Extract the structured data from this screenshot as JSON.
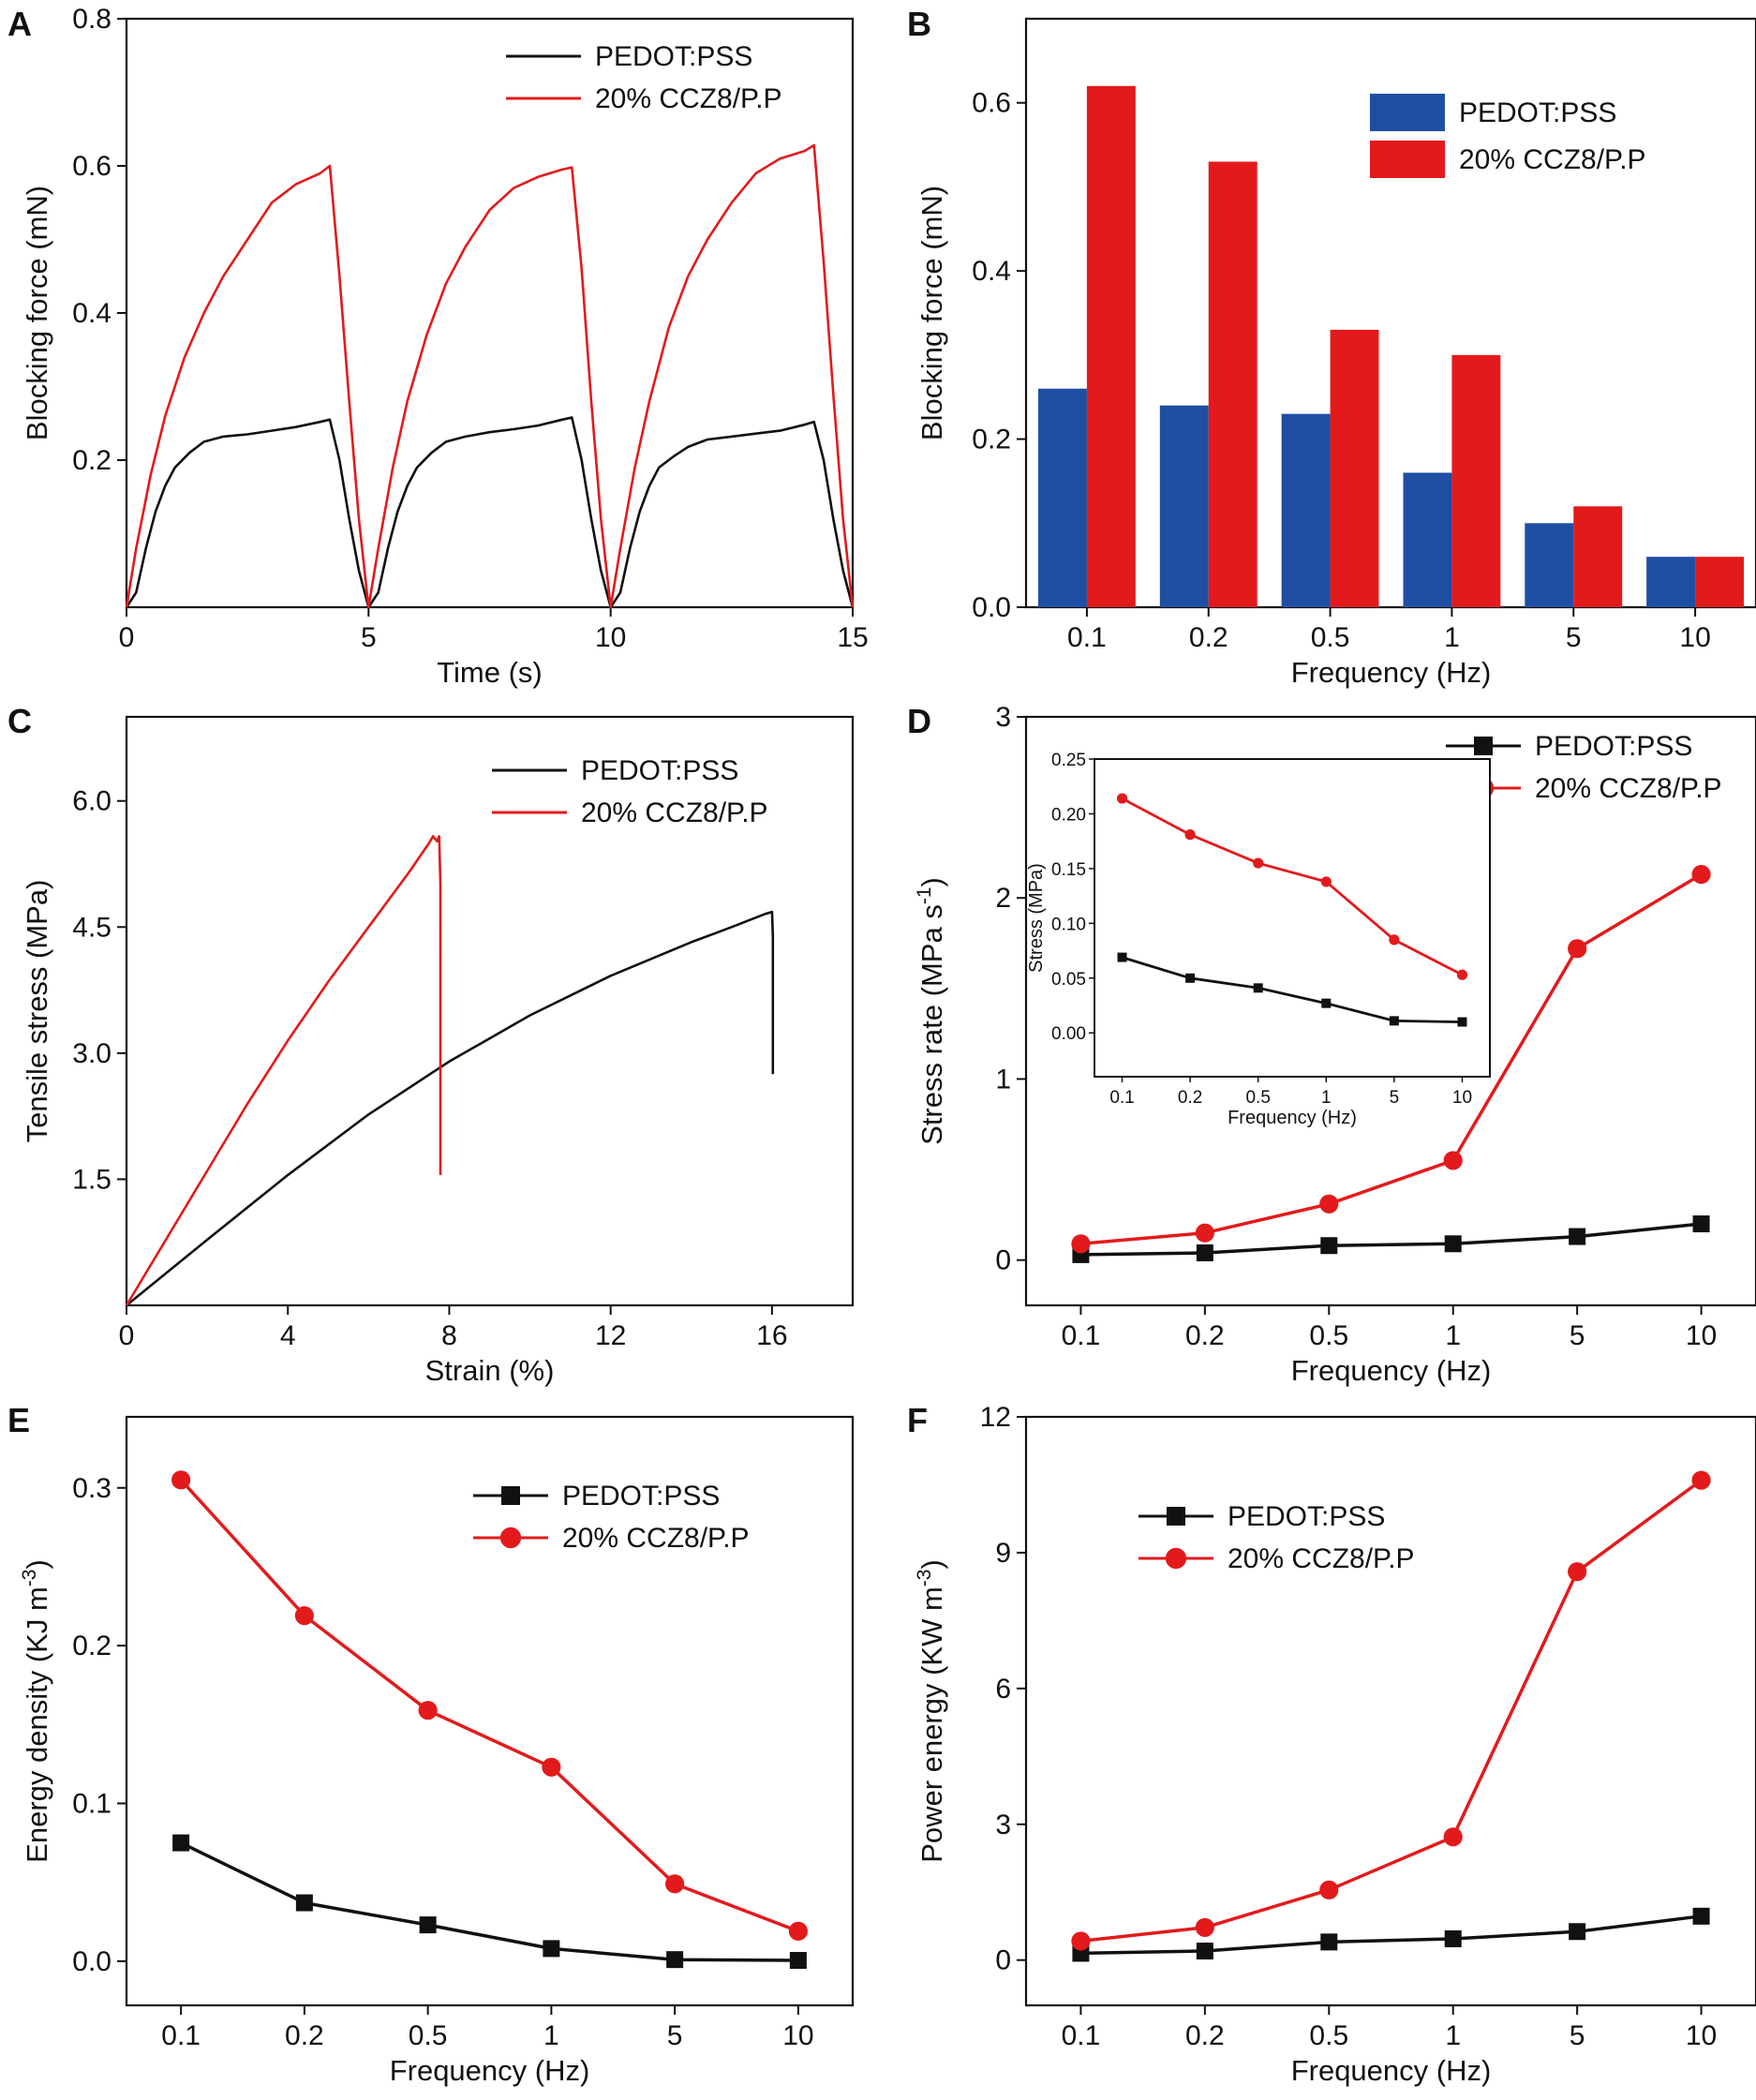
{
  "colors": {
    "black": "#111111",
    "red": "#e31a1c",
    "blue": "#1f4fa3",
    "bar_red": "#e31a1c"
  },
  "chart_data": [
    {
      "panel": "A",
      "type": "line",
      "xlabel": "Time (s)",
      "ylabel": "Blocking force (mN)",
      "xlim": [
        0,
        15
      ],
      "ylim": [
        0,
        0.8
      ],
      "xticks": [
        0,
        5,
        10,
        15
      ],
      "yticks": [
        0.2,
        0.4,
        0.6,
        0.8
      ],
      "xtick_labels": [
        "0",
        "5",
        "10",
        "15"
      ],
      "ytick_labels": [
        "0.2",
        "0.4",
        "0.6",
        "0.8"
      ],
      "legend": [
        "PEDOT:PSS",
        "20% CCZ8/P.P"
      ],
      "series": [
        {
          "name": "PEDOT:PSS",
          "color": "#111111",
          "x": [
            0,
            0.2,
            0.4,
            0.6,
            0.8,
            1.0,
            1.3,
            1.6,
            2.0,
            2.5,
            3.0,
            3.5,
            4.0,
            4.2,
            4.4,
            4.6,
            4.8,
            5.0,
            5.2,
            5.4,
            5.6,
            5.8,
            6.0,
            6.3,
            6.6,
            7.0,
            7.5,
            8.0,
            8.5,
            9.0,
            9.2,
            9.4,
            9.6,
            9.8,
            10.0,
            10.2,
            10.4,
            10.6,
            10.8,
            11.0,
            11.3,
            11.6,
            12.0,
            12.5,
            13.0,
            13.5,
            14.0,
            14.2,
            14.4,
            14.6,
            14.8,
            15.0
          ],
          "y": [
            0,
            0.02,
            0.08,
            0.13,
            0.165,
            0.19,
            0.21,
            0.225,
            0.232,
            0.235,
            0.24,
            0.245,
            0.252,
            0.255,
            0.2,
            0.12,
            0.05,
            0,
            0.02,
            0.08,
            0.13,
            0.165,
            0.19,
            0.21,
            0.225,
            0.232,
            0.238,
            0.242,
            0.247,
            0.255,
            0.258,
            0.2,
            0.12,
            0.05,
            0,
            0.02,
            0.08,
            0.13,
            0.165,
            0.19,
            0.205,
            0.218,
            0.228,
            0.232,
            0.236,
            0.24,
            0.248,
            0.252,
            0.2,
            0.12,
            0.05,
            0
          ]
        },
        {
          "name": "20% CCZ8/P.P",
          "color": "#e31a1c",
          "x": [
            0,
            0.2,
            0.5,
            0.8,
            1.2,
            1.6,
            2.0,
            2.5,
            3.0,
            3.5,
            4.0,
            4.2,
            4.4,
            4.6,
            4.8,
            5.0,
            5.2,
            5.5,
            5.8,
            6.2,
            6.6,
            7.0,
            7.5,
            8.0,
            8.5,
            9.0,
            9.2,
            9.4,
            9.6,
            9.8,
            10.0,
            10.2,
            10.5,
            10.8,
            11.2,
            11.6,
            12.0,
            12.5,
            13.0,
            13.5,
            14.0,
            14.2,
            14.4,
            14.6,
            14.8,
            15.0
          ],
          "y": [
            0,
            0.08,
            0.18,
            0.26,
            0.34,
            0.4,
            0.45,
            0.5,
            0.55,
            0.575,
            0.59,
            0.6,
            0.45,
            0.28,
            0.12,
            0,
            0.08,
            0.19,
            0.28,
            0.37,
            0.44,
            0.49,
            0.54,
            0.57,
            0.585,
            0.595,
            0.598,
            0.46,
            0.28,
            0.12,
            0,
            0.08,
            0.19,
            0.28,
            0.38,
            0.45,
            0.5,
            0.55,
            0.59,
            0.61,
            0.62,
            0.628,
            0.47,
            0.29,
            0.12,
            0
          ]
        }
      ]
    },
    {
      "panel": "B",
      "type": "bar",
      "xlabel": "Frequency (Hz)",
      "ylabel": "Blocking force (mN)",
      "ylim": [
        0,
        0.7
      ],
      "yticks": [
        0.0,
        0.2,
        0.4,
        0.6
      ],
      "ytick_labels": [
        "0.0",
        "0.2",
        "0.4",
        "0.6"
      ],
      "categories": [
        "0.1",
        "0.2",
        "0.5",
        "1",
        "5",
        "10"
      ],
      "legend": [
        "PEDOT:PSS",
        "20% CCZ8/P.P"
      ],
      "series": [
        {
          "name": "PEDOT:PSS",
          "color": "#1f4fa3",
          "values": [
            0.26,
            0.24,
            0.23,
            0.16,
            0.1,
            0.06
          ]
        },
        {
          "name": "20% CCZ8/P.P",
          "color": "#e31a1c",
          "values": [
            0.62,
            0.53,
            0.33,
            0.3,
            0.12,
            0.06
          ]
        }
      ]
    },
    {
      "panel": "C",
      "type": "line",
      "xlabel": "Strain (%)",
      "ylabel": "Tensile stress (MPa)",
      "xlim": [
        0,
        18
      ],
      "ylim": [
        0,
        7
      ],
      "xticks": [
        0,
        4,
        8,
        12,
        16
      ],
      "xtick_labels": [
        "0",
        "4",
        "8",
        "12",
        "16"
      ],
      "yticks": [
        1.5,
        3.0,
        4.5,
        6.0
      ],
      "ytick_labels": [
        "1.5",
        "3.0",
        "4.5",
        "6.0"
      ],
      "legend": [
        "PEDOT:PSS",
        "20% CCZ8/P.P"
      ],
      "series": [
        {
          "name": "PEDOT:PSS",
          "color": "#111111",
          "x": [
            0,
            2,
            4,
            6,
            8,
            10,
            12,
            14,
            15,
            15.8,
            16.0,
            16.02,
            16.02
          ],
          "y": [
            0,
            0.78,
            1.55,
            2.27,
            2.9,
            3.45,
            3.92,
            4.32,
            4.5,
            4.65,
            4.68,
            4.4,
            2.75
          ]
        },
        {
          "name": "20% CCZ8/P.P",
          "color": "#e31a1c",
          "x": [
            0,
            1,
            2,
            3,
            4,
            5,
            6,
            7,
            7.5,
            7.6,
            7.7,
            7.75,
            7.78,
            7.78
          ],
          "y": [
            0,
            0.8,
            1.6,
            2.4,
            3.15,
            3.85,
            4.5,
            5.15,
            5.5,
            5.58,
            5.52,
            5.58,
            5.0,
            1.55
          ]
        }
      ]
    },
    {
      "panel": "D",
      "type": "line",
      "xlabel": "Frequency (Hz)",
      "ylabel": "Stress rate (MPa s",
      "ylabel_sup": "-1",
      "ylabel_end": ")",
      "ylim": [
        -0.25,
        3
      ],
      "yticks": [
        0,
        1,
        2,
        3
      ],
      "ytick_labels": [
        "0",
        "1",
        "2",
        "3"
      ],
      "categories": [
        "0.1",
        "0.2",
        "0.5",
        "1",
        "5",
        "10"
      ],
      "legend": [
        "PEDOT:PSS",
        "20% CCZ8/P.P"
      ],
      "series": [
        {
          "name": "PEDOT:PSS",
          "color": "#111111",
          "marker": "square",
          "values": [
            0.03,
            0.04,
            0.08,
            0.09,
            0.13,
            0.2
          ]
        },
        {
          "name": "20% CCZ8/P.P",
          "color": "#e31a1c",
          "marker": "circle",
          "values": [
            0.09,
            0.15,
            0.31,
            0.55,
            1.72,
            2.13
          ]
        }
      ],
      "inset": {
        "xlabel": "Frequency (Hz)",
        "ylabel": "Stress (MPa)",
        "ylim": [
          -0.04,
          0.25
        ],
        "yticks": [
          0.0,
          0.05,
          0.1,
          0.15,
          0.2,
          0.25
        ],
        "ytick_labels": [
          "0.00",
          "0.05",
          "0.10",
          "0.15",
          "0.20",
          "0.25"
        ],
        "categories": [
          "0.1",
          "0.2",
          "0.5",
          "1",
          "5",
          "10"
        ],
        "series": [
          {
            "name": "PEDOT:PSS",
            "color": "#111111",
            "marker": "square",
            "values": [
              0.069,
              0.05,
              0.041,
              0.027,
              0.011,
              0.01
            ]
          },
          {
            "name": "20% CCZ8/P.P",
            "color": "#e31a1c",
            "marker": "circle",
            "values": [
              0.214,
              0.181,
              0.155,
              0.138,
              0.085,
              0.053
            ]
          }
        ]
      }
    },
    {
      "panel": "E",
      "type": "line",
      "xlabel": "Frequency (Hz)",
      "ylabel": "Energy density (KJ m",
      "ylabel_sup": "-3",
      "ylabel_end": ")",
      "ylim": [
        -0.028,
        0.345
      ],
      "yticks": [
        0.0,
        0.1,
        0.2,
        0.3
      ],
      "ytick_labels": [
        "0.0",
        "0.1",
        "0.2",
        "0.3"
      ],
      "categories": [
        "0.1",
        "0.2",
        "0.5",
        "1",
        "5",
        "10"
      ],
      "legend": [
        "PEDOT:PSS",
        "20% CCZ8/P.P"
      ],
      "series": [
        {
          "name": "PEDOT:PSS",
          "color": "#111111",
          "marker": "square",
          "values": [
            0.075,
            0.037,
            0.023,
            0.008,
            0.001,
            0.0005
          ]
        },
        {
          "name": "20% CCZ8/P.P",
          "color": "#e31a1c",
          "marker": "circle",
          "values": [
            0.305,
            0.219,
            0.159,
            0.123,
            0.049,
            0.019
          ]
        }
      ]
    },
    {
      "panel": "F",
      "type": "line",
      "xlabel": "Frequency (Hz)",
      "ylabel": "Power energy (KW m",
      "ylabel_sup": "-3",
      "ylabel_end": ")",
      "ylim": [
        -1,
        12
      ],
      "yticks": [
        0,
        3,
        6,
        9,
        12
      ],
      "ytick_labels": [
        "0",
        "3",
        "6",
        "9",
        "12"
      ],
      "categories": [
        "0.1",
        "0.2",
        "0.5",
        "1",
        "5",
        "10"
      ],
      "legend": [
        "PEDOT:PSS",
        "20% CCZ8/P.P"
      ],
      "series": [
        {
          "name": "PEDOT:PSS",
          "color": "#111111",
          "marker": "square",
          "values": [
            0.15,
            0.2,
            0.4,
            0.47,
            0.63,
            0.97
          ]
        },
        {
          "name": "20% CCZ8/P.P",
          "color": "#e31a1c",
          "marker": "circle",
          "values": [
            0.42,
            0.72,
            1.55,
            2.72,
            8.58,
            10.6
          ]
        }
      ]
    }
  ]
}
